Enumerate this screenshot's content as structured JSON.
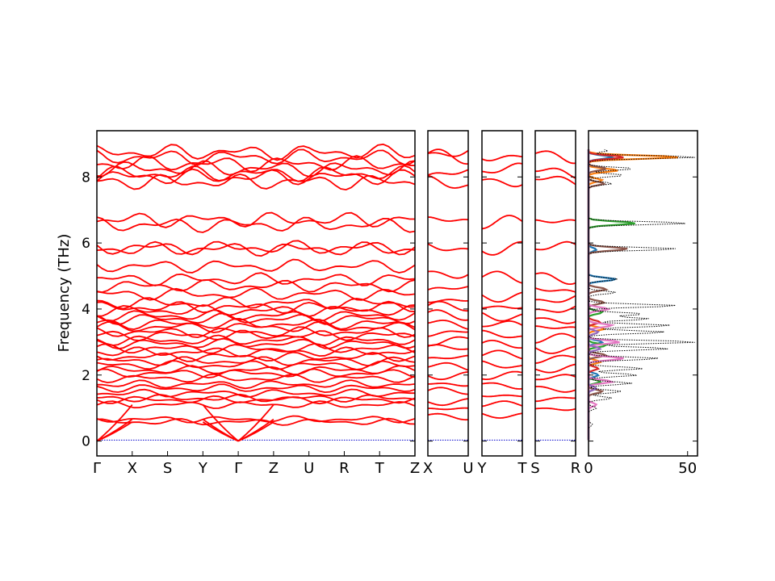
{
  "chart_data": {
    "type": "line",
    "title": "",
    "ylabel": "Frequency (THz)",
    "ylim": [
      -0.45,
      9.4
    ],
    "yticks": [
      0,
      2,
      4,
      6,
      8
    ],
    "band_color": "#ff0000",
    "zero_line_color": "#0000cc",
    "segments": [
      {
        "labels": [
          "Γ",
          "X",
          "S",
          "Y",
          "Γ",
          "Z",
          "U",
          "R",
          "T",
          "Z"
        ],
        "bands": [
          0.03,
          0.58,
          0.66,
          1.1,
          1.25,
          1.3,
          1.45,
          1.6,
          1.72,
          1.9,
          2.05,
          2.15,
          2.3,
          2.42,
          2.55,
          2.7,
          2.8,
          2.95,
          3.05,
          3.2,
          3.3,
          3.45,
          3.55,
          3.7,
          3.8,
          3.95,
          4.05,
          4.18,
          4.45,
          4.7,
          4.9,
          5.3,
          5.82,
          5.86,
          6.55,
          6.7,
          7.85,
          8.0,
          8.1,
          8.25,
          8.4,
          8.6,
          8.75
        ]
      },
      {
        "labels": [
          "X",
          "U"
        ],
        "bands": [
          0.03,
          0.75,
          0.95,
          1.2,
          1.5,
          1.75,
          2.0,
          2.25,
          2.5,
          2.8,
          3.05,
          3.3,
          3.55,
          3.8,
          4.05,
          4.3,
          4.6,
          5.1,
          5.85,
          6.65,
          7.8,
          8.1,
          8.6,
          8.75
        ]
      },
      {
        "labels": [
          "Y",
          "T"
        ],
        "bands": [
          0.03,
          0.8,
          1.1,
          1.4,
          1.7,
          2.0,
          2.3,
          2.6,
          2.9,
          3.2,
          3.5,
          3.8,
          4.1,
          4.4,
          4.95,
          5.85,
          6.6,
          7.9,
          8.2,
          8.65
        ]
      },
      {
        "labels": [
          "S",
          "R"
        ],
        "bands": [
          0.03,
          1.0,
          1.3,
          1.6,
          1.9,
          2.2,
          2.5,
          2.8,
          3.1,
          3.4,
          3.7,
          4.0,
          4.3,
          4.55,
          4.95,
          5.85,
          6.6,
          7.9,
          8.15,
          8.65
        ]
      }
    ],
    "dos": {
      "xlim": [
        0,
        55
      ],
      "xticks": [
        0,
        50
      ],
      "total_color": "#000000",
      "peaks": [
        [
          0.5,
          2
        ],
        [
          1.0,
          4
        ],
        [
          1.3,
          12
        ],
        [
          1.5,
          17
        ],
        [
          1.75,
          22
        ],
        [
          2.0,
          25
        ],
        [
          2.2,
          28
        ],
        [
          2.5,
          36
        ],
        [
          2.8,
          41
        ],
        [
          3.0,
          55
        ],
        [
          3.3,
          39
        ],
        [
          3.5,
          42
        ],
        [
          3.7,
          31
        ],
        [
          3.85,
          28
        ],
        [
          4.1,
          45
        ],
        [
          4.5,
          14
        ],
        [
          4.9,
          15
        ],
        [
          5.82,
          45
        ],
        [
          6.6,
          50
        ],
        [
          7.8,
          12
        ],
        [
          8.05,
          18
        ],
        [
          8.25,
          23
        ],
        [
          8.6,
          55
        ],
        [
          8.8,
          10
        ]
      ],
      "projections": [
        {
          "color": "#1f77b4",
          "peaks": [
            [
              2.0,
              5
            ],
            [
              3.0,
              7
            ],
            [
              4.9,
              14
            ],
            [
              5.8,
              4
            ],
            [
              8.6,
              12
            ]
          ]
        },
        {
          "color": "#ff7f0e",
          "peaks": [
            [
              2.4,
              6
            ],
            [
              3.4,
              8
            ],
            [
              7.9,
              7
            ],
            [
              8.2,
              15
            ],
            [
              8.6,
              46
            ]
          ]
        },
        {
          "color": "#2ca02c",
          "peaks": [
            [
              1.8,
              6
            ],
            [
              2.9,
              9
            ],
            [
              3.9,
              7
            ],
            [
              6.6,
              24
            ]
          ]
        },
        {
          "color": "#d62728",
          "peaks": [
            [
              2.2,
              5
            ],
            [
              3.6,
              6
            ],
            [
              8.6,
              18
            ]
          ]
        },
        {
          "color": "#8c564b",
          "peaks": [
            [
              1.5,
              7
            ],
            [
              2.6,
              9
            ],
            [
              4.2,
              8
            ],
            [
              4.6,
              9
            ],
            [
              5.82,
              20
            ],
            [
              7.8,
              8
            ],
            [
              8.25,
              9
            ]
          ]
        },
        {
          "color": "#e377c2",
          "peaks": [
            [
              1.1,
              4
            ],
            [
              1.8,
              12
            ],
            [
              2.5,
              18
            ],
            [
              3.0,
              16
            ],
            [
              3.5,
              12
            ],
            [
              4.0,
              10
            ]
          ]
        },
        {
          "color": "#9467bd",
          "peaks": [
            [
              1.6,
              4
            ],
            [
              2.8,
              6
            ],
            [
              3.3,
              5
            ]
          ]
        }
      ]
    }
  }
}
